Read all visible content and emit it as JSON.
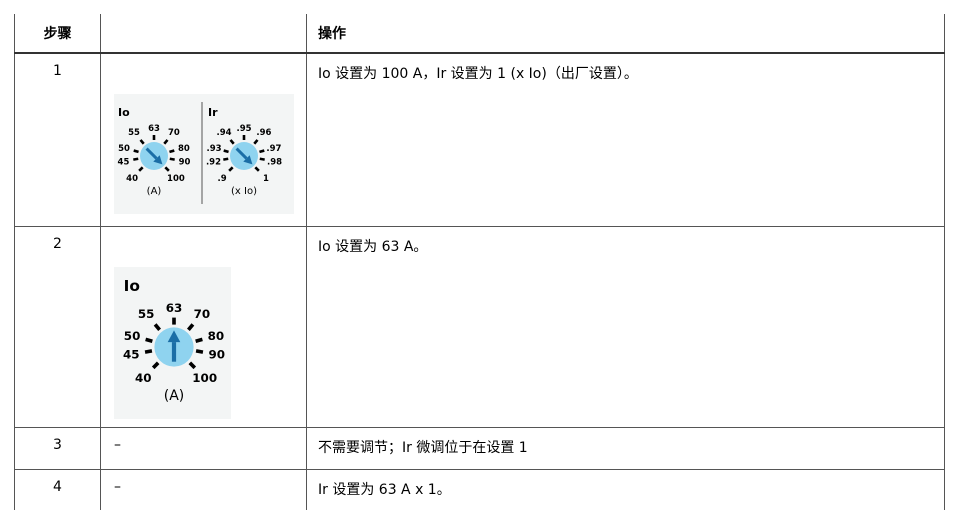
{
  "table": {
    "header": [
      "步骤",
      "操作"
    ],
    "rows": [
      {
        "step": "1",
        "image": {
          "dials": [
            {
              "title": "Io",
              "unit": "(A)",
              "ticks": [
                "40",
                "45",
                "50",
                "55",
                "63",
                "70",
                "80",
                "90",
                "100"
              ],
              "setting": 8
            },
            {
              "title": "Ir",
              "unit": "(x Io)",
              "ticks": [
                ".9",
                ".92",
                ".93",
                ".94",
                ".95",
                ".96",
                ".97",
                ".98",
                "1"
              ],
              "setting": 8
            }
          ]
        },
        "action": "Io 设置为 100 A，Ir 设置为 1 (x Io)（出厂设置）。"
      },
      {
        "step": "2",
        "image": {
          "dials": [
            {
              "title": "Io",
              "unit": "(A)",
              "ticks": [
                "40",
                "45",
                "50",
                "55",
                "63",
                "70",
                "80",
                "90",
                "100"
              ],
              "setting": 4
            }
          ]
        },
        "action": "Io 设置为 63 A。"
      },
      {
        "step": "3",
        "cell": "–",
        "action": "不需要调节；Ir 微调位于在设置 1"
      },
      {
        "step": "4",
        "cell": "–",
        "action": "Ir 设置为 63 A x 1。"
      }
    ]
  }
}
